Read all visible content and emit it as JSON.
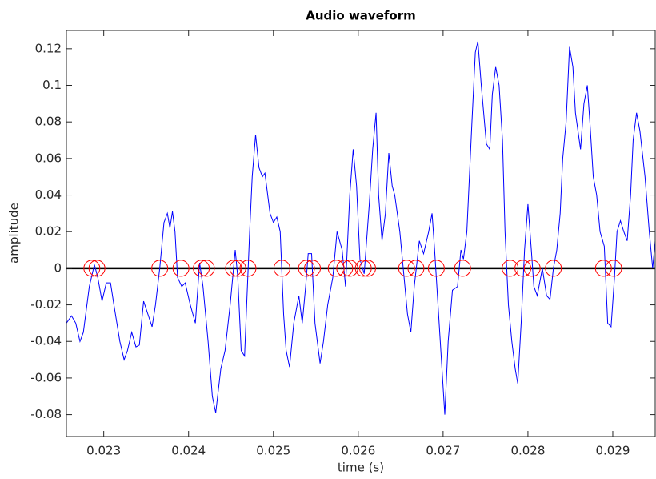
{
  "chart_data": {
    "type": "line",
    "title": "Audio waveform",
    "xlabel": "time (s)",
    "ylabel": "amplitude",
    "xlim": [
      0.02256,
      0.0295
    ],
    "ylim": [
      -0.092,
      0.13
    ],
    "xticks": [
      0.023,
      0.024,
      0.025,
      0.026,
      0.027,
      0.028,
      0.029
    ],
    "yticks": [
      -0.08,
      -0.06,
      -0.04,
      -0.02,
      0,
      0.02,
      0.04,
      0.06,
      0.08,
      0.1,
      0.12
    ],
    "grid": false,
    "reference_line": 0,
    "reference_color": "#000000",
    "series": [
      {
        "type": "line",
        "color": "#0000ff",
        "x": [
          0.02256,
          0.02262,
          0.02267,
          0.02272,
          0.02276,
          0.02283,
          0.02289,
          0.02293,
          0.02298,
          0.02303,
          0.02308,
          0.02312,
          0.02319,
          0.02324,
          0.02328,
          0.02333,
          0.02338,
          0.02342,
          0.02347,
          0.02352,
          0.02357,
          0.02361,
          0.02366,
          0.02371,
          0.02375,
          0.02378,
          0.02381,
          0.02384,
          0.02387,
          0.02392,
          0.02396,
          0.02402,
          0.02408,
          0.02413,
          0.02417,
          0.02423,
          0.02428,
          0.02432,
          0.02438,
          0.02443,
          0.02449,
          0.02455,
          0.02458,
          0.02462,
          0.02466,
          0.02472,
          0.02475,
          0.02479,
          0.02483,
          0.02487,
          0.0249,
          0.02496,
          0.025,
          0.02504,
          0.02508,
          0.02512,
          0.02515,
          0.02519,
          0.02524,
          0.0253,
          0.02534,
          0.02538,
          0.02541,
          0.02545,
          0.02549,
          0.02555,
          0.02559,
          0.02564,
          0.0257,
          0.02575,
          0.02581,
          0.02585,
          0.0259,
          0.02594,
          0.02598,
          0.02602,
          0.02607,
          0.02613,
          0.02617,
          0.02621,
          0.02624,
          0.02628,
          0.02632,
          0.02636,
          0.0264,
          0.02643,
          0.02649,
          0.02655,
          0.02658,
          0.02662,
          0.02666,
          0.02672,
          0.02677,
          0.02683,
          0.02687,
          0.0269,
          0.02694,
          0.02698,
          0.02702,
          0.02706,
          0.02711,
          0.02717,
          0.02721,
          0.02724,
          0.02728,
          0.02734,
          0.02738,
          0.02741,
          0.02745,
          0.02751,
          0.02755,
          0.02758,
          0.02762,
          0.02766,
          0.0277,
          0.02773,
          0.02777,
          0.02781,
          0.02785,
          0.02788,
          0.02792,
          0.02796,
          0.028,
          0.02804,
          0.02807,
          0.02811,
          0.02817,
          0.02822,
          0.02826,
          0.0283,
          0.02834,
          0.02838,
          0.02841,
          0.02845,
          0.02849,
          0.02853,
          0.02856,
          0.02862,
          0.02866,
          0.0287,
          0.02873,
          0.02877,
          0.02881,
          0.02885,
          0.0289,
          0.02894,
          0.02898,
          0.02902,
          0.02905,
          0.02909,
          0.02913,
          0.02917,
          0.02921,
          0.02924,
          0.02928,
          0.02932,
          0.02938,
          0.02943,
          0.02947,
          0.0295
        ],
        "values": [
          -0.03,
          -0.026,
          -0.03,
          -0.04,
          -0.035,
          -0.01,
          0.002,
          -0.005,
          -0.018,
          -0.008,
          -0.008,
          -0.02,
          -0.04,
          -0.05,
          -0.045,
          -0.035,
          -0.043,
          -0.042,
          -0.018,
          -0.025,
          -0.032,
          -0.02,
          0.0,
          0.025,
          0.03,
          0.022,
          0.031,
          0.02,
          -0.005,
          -0.01,
          -0.008,
          -0.02,
          -0.03,
          0.003,
          -0.01,
          -0.04,
          -0.07,
          -0.079,
          -0.055,
          -0.045,
          -0.02,
          0.01,
          -0.005,
          -0.045,
          -0.048,
          0.02,
          0.05,
          0.073,
          0.055,
          0.05,
          0.052,
          0.03,
          0.025,
          0.028,
          0.02,
          -0.025,
          -0.045,
          -0.054,
          -0.03,
          -0.015,
          -0.03,
          -0.01,
          0.008,
          0.008,
          -0.03,
          -0.052,
          -0.04,
          -0.02,
          -0.005,
          0.02,
          0.01,
          -0.01,
          0.04,
          0.065,
          0.045,
          0.005,
          -0.003,
          0.035,
          0.065,
          0.085,
          0.04,
          0.015,
          0.03,
          0.063,
          0.045,
          0.04,
          0.02,
          -0.01,
          -0.025,
          -0.035,
          -0.01,
          0.015,
          0.008,
          0.02,
          0.03,
          0.01,
          -0.02,
          -0.05,
          -0.08,
          -0.04,
          -0.012,
          -0.01,
          0.01,
          0.005,
          0.02,
          0.08,
          0.118,
          0.124,
          0.1,
          0.068,
          0.065,
          0.095,
          0.11,
          0.1,
          0.07,
          0.02,
          -0.02,
          -0.04,
          -0.055,
          -0.063,
          -0.03,
          0.01,
          0.035,
          0.01,
          -0.01,
          -0.015,
          0.0,
          -0.015,
          -0.017,
          0.0,
          0.01,
          0.03,
          0.06,
          0.08,
          0.121,
          0.11,
          0.085,
          0.065,
          0.09,
          0.1,
          0.08,
          0.05,
          0.04,
          0.02,
          0.012,
          -0.03,
          -0.032,
          -0.005,
          0.02,
          0.026,
          0.02,
          0.015,
          0.04,
          0.07,
          0.085,
          0.075,
          0.05,
          0.02,
          0.0,
          0.015
        ]
      },
      {
        "type": "scatter",
        "color": "#ff0000",
        "x": [
          0.02286,
          0.02292,
          0.02366,
          0.02391,
          0.02415,
          0.02421,
          0.02453,
          0.02458,
          0.0247,
          0.0251,
          0.02539,
          0.02546,
          0.02574,
          0.02584,
          0.0259,
          0.02606,
          0.02611,
          0.02657,
          0.02668,
          0.02692,
          0.02723,
          0.02779,
          0.02794,
          0.02805,
          0.0283,
          0.02889,
          0.02901
        ],
        "values": [
          0,
          0,
          0,
          0,
          0,
          0,
          0,
          0,
          0,
          0,
          0,
          0,
          0,
          0,
          0,
          0,
          0,
          0,
          0,
          0,
          0,
          0,
          0,
          0,
          0,
          0,
          0
        ]
      }
    ]
  }
}
